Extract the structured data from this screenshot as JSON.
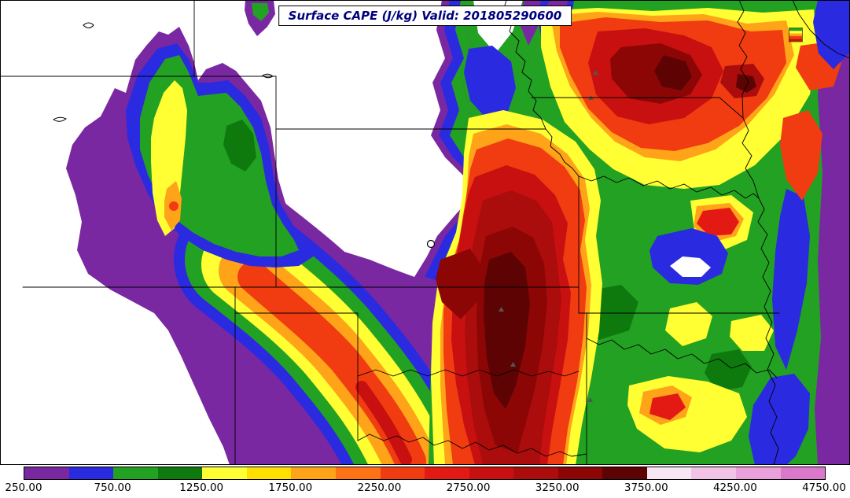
{
  "title": {
    "text": "Surface CAPE (J/kg) Valid: 201805290600",
    "color": "#00007E"
  },
  "map": {
    "background": "#FFFFFF",
    "line_color": "#000000",
    "region": "Central United States (Rockies to Mississippi Valley)"
  },
  "colorbar": {
    "min": 250,
    "max": 4750,
    "bin_size": 250,
    "tick_values": [
      250,
      750,
      1250,
      1750,
      2250,
      2750,
      3250,
      3750,
      4250,
      4750
    ],
    "tick_labels": [
      "250.00",
      "750.00",
      "1250.00",
      "1750.00",
      "2250.00",
      "2750.00",
      "3250.00",
      "3750.00",
      "4250.00",
      "4750.00"
    ]
  },
  "chart_data": {
    "type": "heatmap",
    "title": "Surface CAPE (J/kg) Valid: 201805290600",
    "variable": "Surface CAPE",
    "units": "J/kg",
    "valid_time": "201805290600",
    "legend_position": "bottom",
    "levels": [
      250,
      500,
      750,
      1000,
      1250,
      1500,
      1750,
      2000,
      2250,
      2500,
      2750,
      3000,
      3250,
      3500,
      3750,
      4000,
      4250,
      4500,
      4750
    ],
    "palette": [
      "#7A28A2",
      "#2A2AE0",
      "#23A123",
      "#0E7A0E",
      "#FFFF33",
      "#FFE000",
      "#FFA319",
      "#FF7216",
      "#F03C10",
      "#E31A13",
      "#C81010",
      "#AB0C0C",
      "#8C0606",
      "#5E0303",
      "#F7E6F3",
      "#F3C3E7",
      "#EBA0DC",
      "#DC78CB"
    ],
    "colorbar_tick_labels": [
      "250.00",
      "750.00",
      "1250.00",
      "1750.00",
      "2250.00",
      "2750.00",
      "3250.00",
      "3750.00",
      "4250.00",
      "4750.00"
    ],
    "features": [
      {
        "area": "central Oklahoma into southern Kansas",
        "description": "primary CAPE maximum, broad dark-red/maroon core",
        "approx_max_jkg": 3750
      },
      {
        "area": "western Iowa / northwest Missouri",
        "description": "secondary maximum with embedded maroon cores",
        "approx_max_jkg": 3750
      },
      {
        "area": "Texas Panhandle arc into southeast Colorado",
        "description": "elongated orange/red band",
        "approx_max_jkg": 2750
      },
      {
        "area": "Utah / western Colorado",
        "description": "isolated green/yellow blob with small orange core",
        "approx_max_jkg": 2000
      },
      {
        "area": "central Nebraska / northeast Colorado wedge",
        "description": "CAPE below 250 (white)",
        "approx_max_jkg": 0
      },
      {
        "area": "Wyoming and far western edge",
        "description": "CAPE below 250 (white)",
        "approx_max_jkg": 0
      },
      {
        "area": "Mississippi Valley eastern edge",
        "description": "purple/blue low-CAPE fringe band",
        "approx_max_jkg": 750
      }
    ]
  }
}
